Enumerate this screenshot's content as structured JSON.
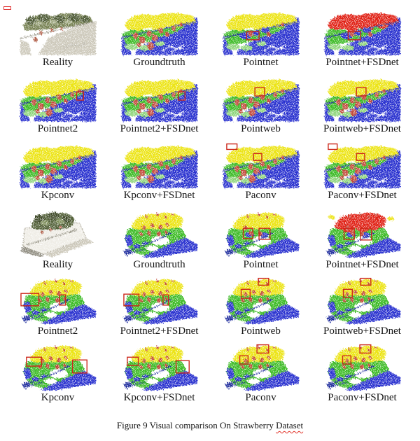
{
  "figure": {
    "caption_prefix": "Figure 9 Visual comparison On Strawberry ",
    "caption_underlined_word": "Dataset",
    "caption_full": "Figure 9 Visual comparison On Strawberry Dataset"
  },
  "colors": {
    "yellow": "#ece414",
    "green": "#3cbb28",
    "green_light": "#8fd57c",
    "blue": "#2b33cf",
    "navy": "#1c2a9c",
    "fruit": "#c2493a",
    "class_red": "#e02114",
    "annotation": "#cc2619",
    "photo_foliage": "#778252",
    "photo_foliage_dark": "#4e5a34",
    "photo_foliage_light": "#a3ac86",
    "photo_shade": "#cdc9bb",
    "photo_line": "#9b988a",
    "photo_fruit": "#b2614c"
  },
  "grid": {
    "rows": [
      {
        "cells": [
          {
            "label": "Reality",
            "scene": 1,
            "variant": "photo"
          },
          {
            "label": "Groundtruth",
            "scene": 1,
            "variant": "groundtruth",
            "top_color": "yellow",
            "fruits": "many"
          },
          {
            "label": "Pointnet",
            "scene": 1,
            "variant": "segmentation",
            "top_color": "yellow",
            "fruits": "few",
            "blue_patches": true,
            "annotation_boxes": [
              [
                34,
                28,
                18,
                12
              ]
            ]
          },
          {
            "label": "Pointnet+FSDnet",
            "scene": 1,
            "variant": "segmentation",
            "top_color": "red",
            "fruits": "few",
            "blue_patches": true,
            "annotation_boxes": [
              [
                34,
                28,
                18,
                12
              ]
            ]
          }
        ]
      },
      {
        "cells": [
          {
            "label": "Pointnet2",
            "scene": 1,
            "variant": "segmentation",
            "top_color": "yellow",
            "fruits": "many",
            "annotation_boxes": [
              [
                82,
                19,
                10,
                12
              ]
            ]
          },
          {
            "label": "Pointnet2+FSDnet",
            "scene": 1,
            "variant": "segmentation",
            "top_color": "yellow",
            "fruits": "many",
            "annotation_boxes": [
              [
                82,
                19,
                10,
                12
              ]
            ]
          },
          {
            "label": "Pointweb",
            "scene": 1,
            "variant": "segmentation",
            "top_color": "yellow",
            "fruits": "many",
            "annotation_boxes": [
              [
                46,
                13,
                14,
                12
              ]
            ]
          },
          {
            "label": "Pointweb+FSDnet",
            "scene": 1,
            "variant": "segmentation",
            "top_color": "yellow",
            "fruits": "many",
            "annotation_boxes": [
              [
                46,
                13,
                14,
                12
              ]
            ]
          }
        ]
      },
      {
        "cells": [
          {
            "label": "Kpconv",
            "scene": 1,
            "variant": "segmentation",
            "top_color": "yellow",
            "fruits": "many"
          },
          {
            "label": "Kpconv+FSDnet",
            "scene": 1,
            "variant": "segmentation",
            "top_color": "yellow",
            "fruits": "many"
          },
          {
            "label": "Paconv",
            "scene": 1,
            "variant": "segmentation",
            "top_color": "yellow",
            "fruits": "many",
            "annotation_boxes": [
              [
                5,
                -2,
                15,
                8
              ],
              [
                44,
                12,
                12,
                10
              ]
            ]
          },
          {
            "label": "Paconv+FSDnet",
            "scene": 1,
            "variant": "segmentation",
            "top_color": "yellow",
            "fruits": "many",
            "annotation_boxes": [
              [
                5,
                -2,
                13,
                8
              ],
              [
                46,
                12,
                12,
                10
              ]
            ]
          }
        ]
      },
      {
        "cells": [
          {
            "label": "Reality",
            "scene": 2,
            "variant": "photo"
          },
          {
            "label": "Groundtruth",
            "scene": 2,
            "variant": "groundtruth",
            "top_color": "yellow",
            "fruits": "many"
          },
          {
            "label": "Pointnet",
            "scene": 2,
            "variant": "segmentation",
            "top_color": "yellow",
            "fruits": "few",
            "blue_patches": true,
            "annotation_boxes": [
              [
                29,
                24,
                14,
                15
              ],
              [
                52,
                24,
                16,
                16
              ]
            ]
          },
          {
            "label": "Pointnet+FSDnet",
            "scene": 2,
            "variant": "segmentation",
            "top_color": "red",
            "fruits": "few",
            "blue_patches": true,
            "annotation_boxes": [
              [
                28,
                24,
                15,
                16
              ],
              [
                52,
                24,
                16,
                17
              ]
            ]
          }
        ]
      },
      {
        "cells": [
          {
            "label": "Pointnet2",
            "scene": 2,
            "variant": "segmentation",
            "top_color": "yellow",
            "fruits": "many",
            "annotation_boxes": [
              [
                1,
                22,
                26,
                18
              ],
              [
                57,
                24,
                9,
                15
              ]
            ]
          },
          {
            "label": "Pointnet2+FSDnet",
            "scene": 2,
            "variant": "segmentation",
            "top_color": "yellow",
            "fruits": "many",
            "annotation_boxes": [
              [
                3,
                23,
                22,
                17
              ],
              [
                60,
                24,
                8,
                15
              ]
            ]
          },
          {
            "label": "Pointweb",
            "scene": 2,
            "variant": "segmentation",
            "top_color": "yellow",
            "fruits": "many",
            "annotation_boxes": [
              [
                51,
                0,
                15,
                10
              ],
              [
                26,
                16,
                13,
                13
              ]
            ]
          },
          {
            "label": "Pointweb+FSDnet",
            "scene": 2,
            "variant": "segmentation",
            "top_color": "yellow",
            "fruits": "many",
            "annotation_boxes": [
              [
                52,
                0,
                15,
                10
              ],
              [
                27,
                16,
                13,
                12
              ]
            ]
          }
        ]
      },
      {
        "cells": [
          {
            "label": "Kpconv",
            "scene": 2,
            "variant": "segmentation",
            "top_color": "yellow",
            "fruits": "many",
            "annotation_boxes": [
              [
                9,
                18,
                22,
                13
              ],
              [
                76,
                22,
                21,
                19
              ]
            ]
          },
          {
            "label": "Kpconv+FSDnet",
            "scene": 2,
            "variant": "segmentation",
            "top_color": "yellow",
            "fruits": "many",
            "annotation_boxes": [
              [
                8,
                18,
                16,
                12
              ],
              [
                79,
                23,
                19,
                18
              ]
            ]
          },
          {
            "label": "Paconv",
            "scene": 2,
            "variant": "segmentation",
            "top_color": "yellow",
            "fruits": "many",
            "annotation_boxes": [
              [
                49,
                0,
                17,
                12
              ],
              [
                24,
                16,
                12,
                12
              ]
            ]
          },
          {
            "label": "Paconv+FSDnet",
            "scene": 2,
            "variant": "segmentation",
            "top_color": "yellow",
            "fruits": "many",
            "annotation_boxes": [
              [
                51,
                0,
                16,
                12
              ],
              [
                26,
                16,
                12,
                12
              ]
            ]
          }
        ]
      }
    ]
  }
}
